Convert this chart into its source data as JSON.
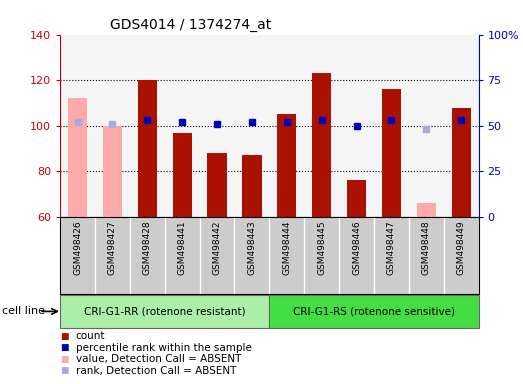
{
  "title": "GDS4014 / 1374274_at",
  "samples": [
    "GSM498426",
    "GSM498427",
    "GSM498428",
    "GSM498441",
    "GSM498442",
    "GSM498443",
    "GSM498444",
    "GSM498445",
    "GSM498446",
    "GSM498447",
    "GSM498448",
    "GSM498449"
  ],
  "count_values": [
    112,
    100,
    120,
    97,
    88,
    87,
    105,
    123,
    76,
    116,
    66,
    108
  ],
  "absent_flags": [
    true,
    true,
    false,
    false,
    false,
    false,
    false,
    false,
    false,
    false,
    true,
    false
  ],
  "rank_values": [
    52,
    51,
    53,
    52,
    51,
    52,
    52,
    53,
    50,
    53,
    48,
    53
  ],
  "ylim_left": [
    60,
    140
  ],
  "ylim_right": [
    0,
    100
  ],
  "yticks_left": [
    60,
    80,
    100,
    120,
    140
  ],
  "yticks_right": [
    0,
    25,
    50,
    75,
    100
  ],
  "ytick_labels_right": [
    "0",
    "25",
    "50",
    "75",
    "100%"
  ],
  "group1_label": "CRI-G1-RR (rotenone resistant)",
  "group2_label": "CRI-G1-RS (rotenone sensitive)",
  "group1_color": "#aaeeaa",
  "group2_color": "#44dd44",
  "bar_color_present": "#aa1100",
  "bar_color_absent": "#ffaaaa",
  "dot_color_present": "#0000bb",
  "dot_color_absent": "#aaaadd",
  "legend_items": [
    "count",
    "percentile rank within the sample",
    "value, Detection Call = ABSENT",
    "rank, Detection Call = ABSENT"
  ],
  "legend_colors": [
    "#aa1100",
    "#0000bb",
    "#ffaaaa",
    "#aaaadd"
  ],
  "plot_bg": "#f5f5f5",
  "cell_bg": "#cccccc",
  "group1_indices": [
    0,
    1,
    2,
    3,
    4,
    5
  ],
  "group2_indices": [
    6,
    7,
    8,
    9,
    10,
    11
  ],
  "grid_lines": [
    80,
    100,
    120
  ],
  "left_ytick_color": "#cc0000",
  "right_ytick_color": "#0000cc"
}
